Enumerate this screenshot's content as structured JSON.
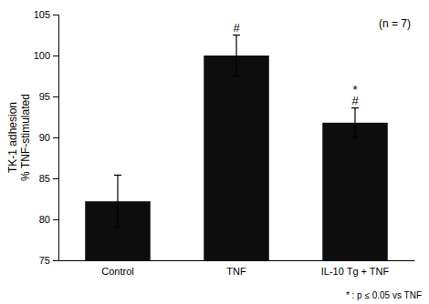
{
  "chart_data": {
    "type": "bar",
    "categories": [
      "Control",
      "TNF",
      "IL-10 Tg + TNF"
    ],
    "values": [
      82.2,
      100.0,
      91.8
    ],
    "errors": [
      3.2,
      2.5,
      1.8
    ],
    "color": "#0d0d0d",
    "ylim": [
      75,
      105
    ],
    "yticks": [
      75,
      80,
      85,
      90,
      95,
      100,
      105
    ],
    "ylabel": [
      "TK-1 adhesion",
      "% TNF-stimulated"
    ],
    "annotations": [
      {
        "text": "#",
        "category": "TNF"
      },
      {
        "text": "#",
        "category": "IL-10 Tg + TNF"
      },
      {
        "text": "*",
        "category": "IL-10 Tg + TNF"
      },
      {
        "text": "(n = 7)"
      }
    ],
    "footnote": "* : p ≤ 0.05 vs TNF",
    "grid": false
  }
}
